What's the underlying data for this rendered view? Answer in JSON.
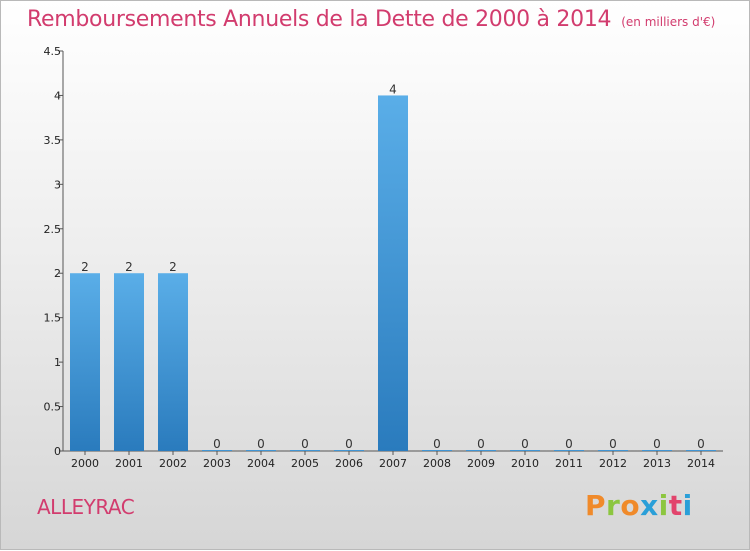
{
  "chart_data": {
    "type": "bar",
    "title": "Remboursements Annuels de la Dette de 2000 à 2014",
    "subtitle": "(en milliers d'€)",
    "categories": [
      "2000",
      "2001",
      "2002",
      "2003",
      "2004",
      "2005",
      "2006",
      "2007",
      "2008",
      "2009",
      "2010",
      "2011",
      "2012",
      "2013",
      "2014"
    ],
    "values": [
      2,
      2,
      2,
      0,
      0,
      0,
      0,
      4,
      0,
      0,
      0,
      0,
      0,
      0,
      0
    ],
    "data_labels": [
      "2",
      "2",
      "2",
      "0",
      "0",
      "0",
      "0",
      "4",
      "0",
      "0",
      "0",
      "0",
      "0",
      "0",
      "0"
    ],
    "y_ticks": [
      0,
      0.5,
      1,
      1.5,
      2,
      2.5,
      3,
      3.5,
      4,
      4.5
    ],
    "y_tick_labels": [
      "0",
      "0.5",
      "1",
      "1.5",
      "2",
      "2.5",
      "3",
      "3.5",
      "4",
      "4.5"
    ],
    "ylim": [
      0,
      4.5
    ],
    "xlabel": "",
    "ylabel": "",
    "grid": false,
    "bar_color_top": "#5aaee8",
    "bar_color_bottom": "#2a7bbd"
  },
  "footer": {
    "commune": "ALLEYRAC",
    "brand": "Proxiti"
  },
  "colors": {
    "title": "#d23c6e",
    "brand_letters": [
      "#f08a2a",
      "#8cc63f",
      "#f08a2a",
      "#2a9fd8",
      "#8cc63f",
      "#e2446c",
      "#2a9fd8"
    ]
  }
}
